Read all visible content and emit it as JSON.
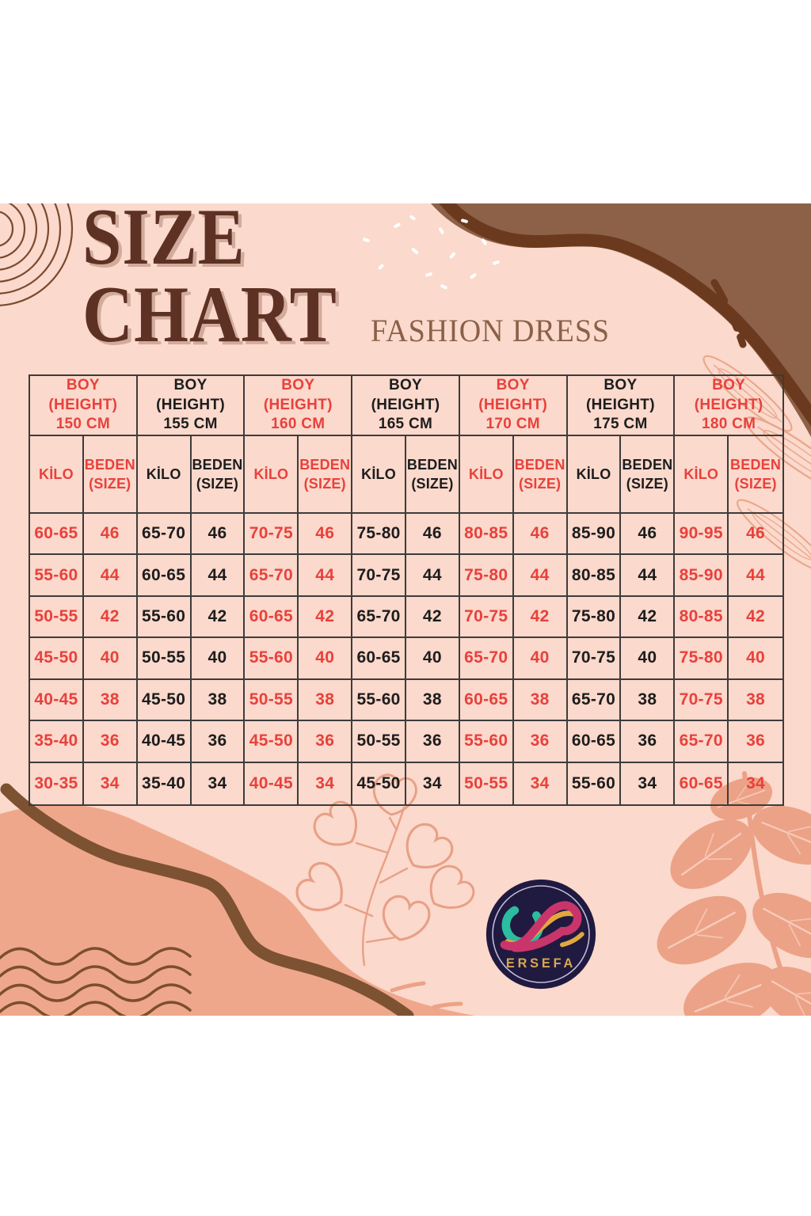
{
  "title": {
    "line1": "SIZE",
    "line2": "CHART"
  },
  "subtitle": "FASHION DRESS",
  "logo": {
    "name": "ERSEFA"
  },
  "colors": {
    "page_background": "#ffffff",
    "canvas_pink": "#fbd9cc",
    "accent_red": "#e8413c",
    "text_black": "#1d1d1d",
    "title_brown": "#5d3123",
    "subtitle_brown": "#8a6049",
    "blob_brown": "#8c6148",
    "stroke_dark_brown": "#6b3a1e",
    "stroke_brown": "#7d5233",
    "salmon": "#eca287",
    "leaf_outline": "#e9a68a",
    "logo_navy": "#201a41",
    "logo_gold": "#d9a84e",
    "logo_teal": "#2cbc9f",
    "logo_magenta": "#c9356b",
    "grid_line": "#3c3c3c"
  },
  "chart_data": {
    "type": "table",
    "labels": {
      "boy": "BOY",
      "height": "(HEIGHT)",
      "kilo": "KİLO",
      "beden": "BEDEN",
      "size": "(SIZE)"
    },
    "sizes": [
      "46",
      "44",
      "42",
      "40",
      "38",
      "36",
      "34"
    ],
    "groups": [
      {
        "height": "150 CM",
        "color": "red",
        "weights": [
          "60-65",
          "55-60",
          "50-55",
          "45-50",
          "40-45",
          "35-40",
          "30-35"
        ]
      },
      {
        "height": "155 CM",
        "color": "black",
        "weights": [
          "65-70",
          "60-65",
          "55-60",
          "50-55",
          "45-50",
          "40-45",
          "35-40"
        ]
      },
      {
        "height": "160 CM",
        "color": "red",
        "weights": [
          "70-75",
          "65-70",
          "60-65",
          "55-60",
          "50-55",
          "45-50",
          "40-45"
        ]
      },
      {
        "height": "165 CM",
        "color": "black",
        "weights": [
          "75-80",
          "70-75",
          "65-70",
          "60-65",
          "55-60",
          "50-55",
          "45-50"
        ]
      },
      {
        "height": "170 CM",
        "color": "red",
        "weights": [
          "80-85",
          "75-80",
          "70-75",
          "65-70",
          "60-65",
          "55-60",
          "50-55"
        ]
      },
      {
        "height": "175 CM",
        "color": "black",
        "weights": [
          "85-90",
          "80-85",
          "75-80",
          "70-75",
          "65-70",
          "60-65",
          "55-60"
        ]
      },
      {
        "height": "180 CM",
        "color": "red",
        "weights": [
          "90-95",
          "85-90",
          "80-85",
          "75-80",
          "70-75",
          "65-70",
          "60-65"
        ]
      }
    ]
  }
}
